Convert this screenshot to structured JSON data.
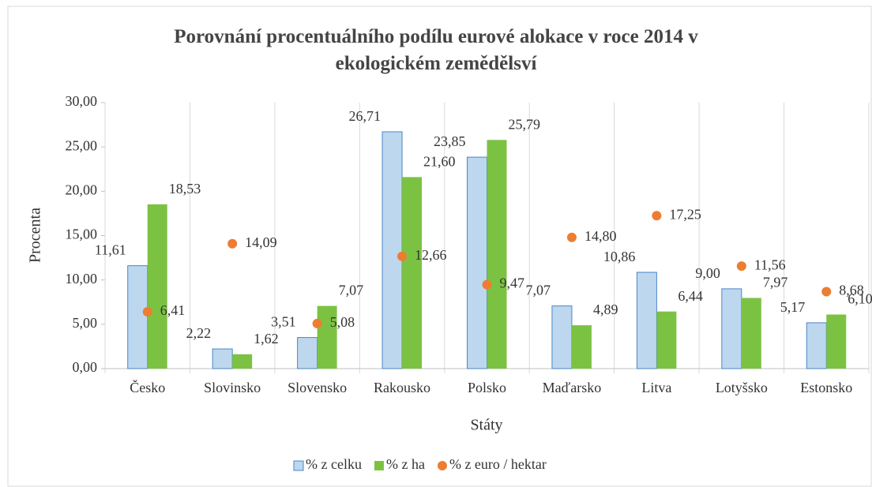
{
  "chart_data": {
    "type": "bar",
    "title": "Porovnání procentuálního podílu eurové alokace v roce 2014 v ekologickém zemědělsví",
    "x_label": "Státy",
    "y_label": "Procenta",
    "categories": [
      "Česko",
      "Slovinsko",
      "Slovensko",
      "Rakousko",
      "Polsko",
      "Maďarsko",
      "Litva",
      "Lotyšsko",
      "Estonsko"
    ],
    "series": [
      {
        "name": "% z celku",
        "type": "bar",
        "color": "#bdd7ee",
        "edge_color": "#4a86c8",
        "values": [
          11.61,
          2.22,
          3.51,
          26.71,
          23.85,
          7.07,
          10.86,
          9.0,
          5.17
        ],
        "value_labels": [
          "11,61",
          "2,22",
          "3,51",
          "26,71",
          "23,85",
          "7,07",
          "10,86",
          "9,00",
          "5,17"
        ]
      },
      {
        "name": "% z ha",
        "type": "bar",
        "color": "#7cc242",
        "values": [
          18.53,
          1.62,
          7.07,
          21.6,
          25.79,
          4.89,
          6.44,
          7.97,
          6.1
        ],
        "value_labels": [
          "18,53",
          "1,62",
          "7,07",
          "21,60",
          "25,79",
          "4,89",
          "6,44",
          "7,97",
          "6,10"
        ]
      },
      {
        "name": "% z euro / hektar",
        "type": "scatter",
        "color": "#ed7d31",
        "values": [
          6.41,
          14.09,
          5.08,
          12.66,
          9.47,
          14.8,
          17.25,
          11.56,
          8.68
        ],
        "value_labels": [
          "6,41",
          "14,09",
          "5,08",
          "12,66",
          "9,47",
          "14,80",
          "17,25",
          "11,56",
          "8,68"
        ]
      }
    ],
    "ylim": [
      0,
      30
    ],
    "yticks": [
      {
        "value": 0,
        "label": "0,00"
      },
      {
        "value": 5,
        "label": "5,00"
      },
      {
        "value": 10,
        "label": "10,00"
      },
      {
        "value": 15,
        "label": "15,00"
      },
      {
        "value": 20,
        "label": "20,00"
      },
      {
        "value": 25,
        "label": "25,00"
      },
      {
        "value": 30,
        "label": "30,00"
      }
    ],
    "legend": "bottom"
  }
}
